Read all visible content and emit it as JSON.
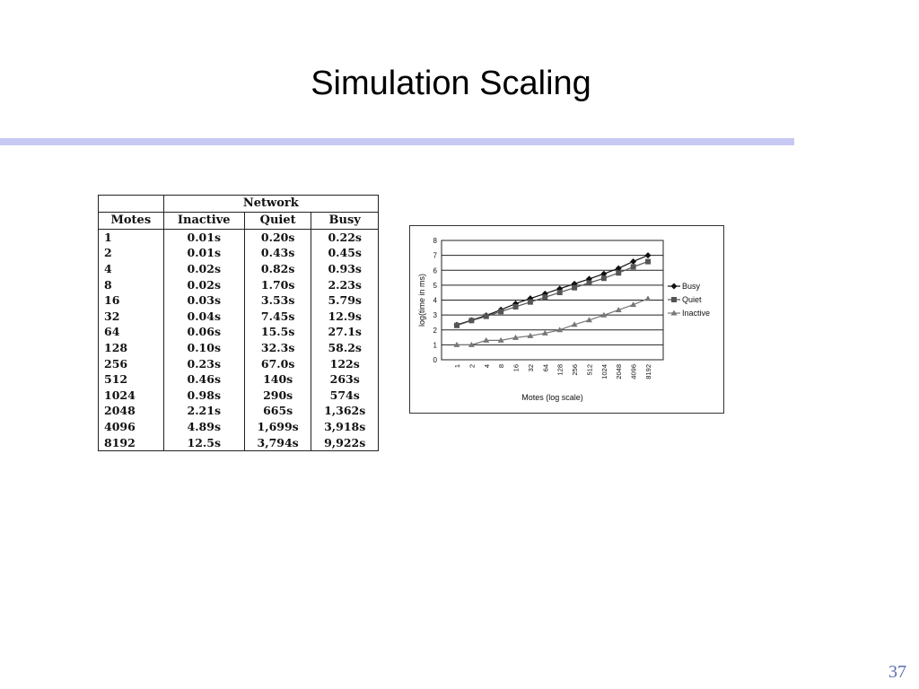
{
  "slide": {
    "title": "Simulation Scaling",
    "page_number": "37",
    "accent_rule_color": "#c8c8f4"
  },
  "table": {
    "group_header": "Network",
    "columns": [
      "Motes",
      "Inactive",
      "Quiet",
      "Busy"
    ],
    "rows": [
      [
        "1",
        "0.01s",
        "0.20s",
        "0.22s"
      ],
      [
        "2",
        "0.01s",
        "0.43s",
        "0.45s"
      ],
      [
        "4",
        "0.02s",
        "0.82s",
        "0.93s"
      ],
      [
        "8",
        "0.02s",
        "1.70s",
        "2.23s"
      ],
      [
        "16",
        "0.03s",
        "3.53s",
        "5.79s"
      ],
      [
        "32",
        "0.04s",
        "7.45s",
        "12.9s"
      ],
      [
        "64",
        "0.06s",
        "15.5s",
        "27.1s"
      ],
      [
        "128",
        "0.10s",
        "32.3s",
        "58.2s"
      ],
      [
        "256",
        "0.23s",
        "67.0s",
        "122s"
      ],
      [
        "512",
        "0.46s",
        "140s",
        "263s"
      ],
      [
        "1024",
        "0.98s",
        "290s",
        "574s"
      ],
      [
        "2048",
        "2.21s",
        "665s",
        "1,362s"
      ],
      [
        "4096",
        "4.89s",
        "1,699s",
        "3,918s"
      ],
      [
        "8192",
        "12.5s",
        "3,794s",
        "9,922s"
      ]
    ]
  },
  "chart_data": {
    "type": "line",
    "xlabel": "Motes (log scale)",
    "ylabel": "log(time in ms)",
    "categories": [
      "1",
      "2",
      "4",
      "8",
      "16",
      "32",
      "64",
      "128",
      "256",
      "512",
      "1024",
      "2048",
      "4096",
      "8192"
    ],
    "ylim": [
      0,
      8
    ],
    "yticks": [
      "0",
      "1",
      "2",
      "3",
      "4",
      "5",
      "6",
      "7",
      "8"
    ],
    "grid": true,
    "legend_position": "right",
    "series": [
      {
        "name": "Busy",
        "marker": "diamond",
        "color": "#111111",
        "values": [
          2.34,
          2.65,
          2.97,
          3.35,
          3.76,
          4.11,
          4.43,
          4.76,
          5.09,
          5.42,
          5.76,
          6.13,
          6.59,
          7.0
        ]
      },
      {
        "name": "Quiet",
        "marker": "square",
        "color": "#555555",
        "values": [
          2.3,
          2.63,
          2.91,
          3.23,
          3.55,
          3.87,
          4.19,
          4.51,
          4.83,
          5.15,
          5.46,
          5.82,
          6.23,
          6.58
        ]
      },
      {
        "name": "Inactive",
        "marker": "triangle",
        "color": "#777777",
        "values": [
          1.0,
          1.0,
          1.3,
          1.3,
          1.48,
          1.6,
          1.78,
          2.0,
          2.36,
          2.66,
          2.99,
          3.34,
          3.69,
          4.1
        ]
      }
    ]
  }
}
